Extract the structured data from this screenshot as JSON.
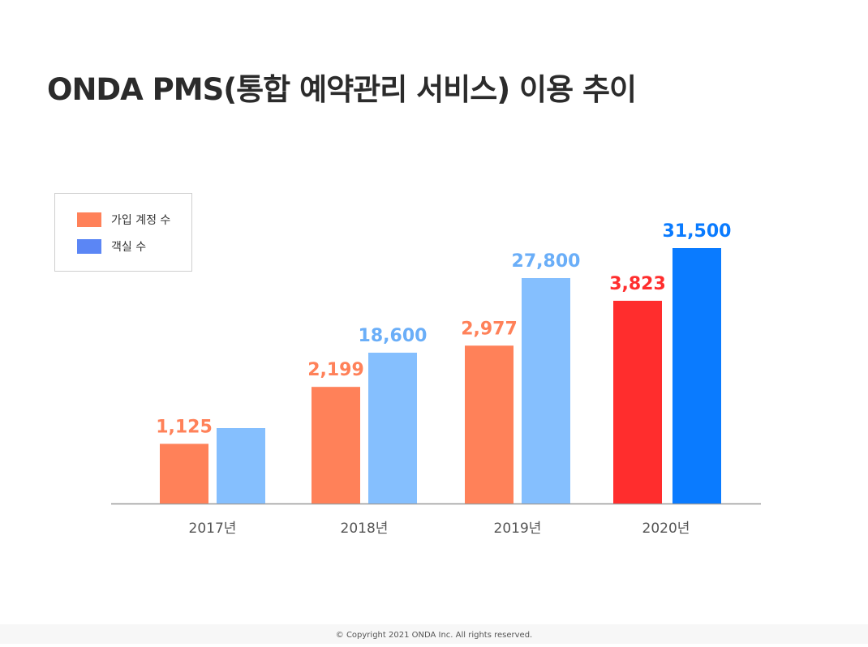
{
  "title": "ONDA PMS(통합 예약관리 서비스) 이용 추이",
  "legend": {
    "items": [
      {
        "label": "가입 계정 수",
        "color": "#ff8159"
      },
      {
        "label": "객실 수",
        "color": "#5b86f5"
      }
    ]
  },
  "footer": "© Copyright 2021 ONDA Inc. All rights reserved.",
  "chart_data": {
    "type": "bar",
    "categories": [
      "2017년",
      "2018년",
      "2019년",
      "2020년"
    ],
    "series": [
      {
        "values": [
          1125,
          2199,
          2977,
          3823
        ],
        "value_labels": [
          "1,125",
          "2,199",
          "2,977",
          "3,823"
        ],
        "colors": [
          "#ff8159",
          "#ff8159",
          "#ff8159",
          "#ff2d2d"
        ],
        "label_colors": [
          "#ff8159",
          "#ff8159",
          "#ff8159",
          "#ff2d2d"
        ]
      },
      {
        "values": [
          9300,
          18600,
          27800,
          31500
        ],
        "value_labels": [
          "",
          "18,600",
          "27,800",
          "31,500"
        ],
        "colors": [
          "#85bffe",
          "#85bffe",
          "#85bffe",
          "#0a7bff"
        ],
        "label_colors": [
          "#6aaef8",
          "#6aaef8",
          "#6aaef8",
          "#0a7bff"
        ]
      }
    ],
    "legend_position": "top-left",
    "grid": false
  }
}
